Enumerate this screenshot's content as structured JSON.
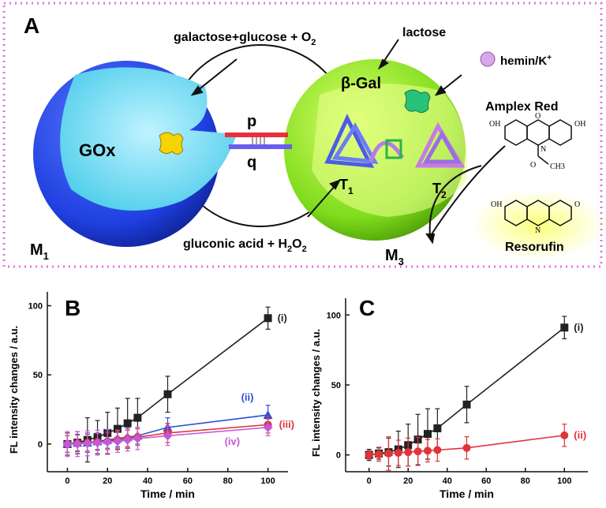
{
  "diagram": {
    "panel": "A",
    "top_reaction": [
      "galactose+glucose + O",
      "2"
    ],
    "bottom_reaction": [
      "gluconic acid + H",
      "2",
      "O",
      "2"
    ],
    "enzyme_left": "GOx",
    "enzyme_right": "β-Gal",
    "substrate": "lactose",
    "cofactor": [
      "hemin/K",
      "+"
    ],
    "strand_p": "p",
    "strand_q": "q",
    "capsule_left": [
      "M",
      "1"
    ],
    "capsule_right": [
      "M",
      "3"
    ],
    "tile_1": [
      "T",
      "1"
    ],
    "tile_2": [
      "T",
      "2"
    ],
    "reagent": "Amplex Red",
    "product": "Resorufin",
    "amplex_atoms": [
      "OH",
      "O",
      "OH",
      "N",
      "O",
      "CH3"
    ],
    "resorufin_atoms": [
      "OH",
      "N",
      "O"
    ]
  },
  "chart_data": [
    {
      "type": "line",
      "panel": "B",
      "x": [
        0,
        5,
        10,
        15,
        20,
        25,
        30,
        35,
        50,
        100
      ],
      "xlim": [
        -10,
        110
      ],
      "xticks": [
        0,
        20,
        40,
        60,
        80,
        100
      ],
      "ylim": [
        -20,
        110
      ],
      "yticks": [
        0,
        50,
        100
      ],
      "x_label": "Time / min",
      "y_label": "FL intensity changes / a.u.",
      "series": [
        {
          "name": "(i)",
          "color": "#222222",
          "marker": "square",
          "values": [
            0,
            1,
            3,
            5,
            8,
            11,
            15,
            19,
            36,
            91
          ],
          "errors": [
            8,
            8,
            16,
            12,
            15,
            15,
            18,
            14,
            13,
            8
          ]
        },
        {
          "name": "(ii)",
          "color": "#2a4fd6",
          "marker": "triangle",
          "values": [
            0,
            1,
            1,
            2,
            3,
            4,
            5,
            6,
            12,
            21
          ],
          "errors": [
            6,
            6,
            7,
            6,
            6,
            6,
            7,
            6,
            7,
            7
          ]
        },
        {
          "name": "(iii)",
          "color": "#e0333a",
          "marker": "circle",
          "values": [
            0,
            0.5,
            1,
            1.5,
            2,
            3,
            4,
            5,
            8,
            14
          ],
          "errors": [
            6,
            6,
            6,
            6,
            6,
            6,
            6,
            6,
            7,
            6
          ]
        },
        {
          "name": "(iv)",
          "color": "#c25ad8",
          "marker": "diamond",
          "values": [
            0,
            0,
            0.5,
            1,
            1.5,
            2,
            3,
            4,
            6,
            12
          ],
          "errors": [
            9,
            9,
            9,
            9,
            9,
            8,
            8,
            8,
            7,
            6
          ]
        }
      ]
    },
    {
      "type": "line",
      "panel": "C",
      "x": [
        0,
        5,
        10,
        15,
        20,
        25,
        30,
        35,
        50,
        100
      ],
      "xlim": [
        -12,
        112
      ],
      "xticks": [
        0,
        20,
        40,
        60,
        80,
        100
      ],
      "ylim": [
        -12,
        112
      ],
      "yticks": [
        0,
        50,
        100
      ],
      "x_label": "Time / min",
      "y_label": "FL intensity changes / a.u.",
      "series": [
        {
          "name": "(i)",
          "color": "#222222",
          "marker": "square",
          "values": [
            0,
            1,
            2,
            4,
            7,
            11,
            15,
            19,
            36,
            91
          ],
          "errors": [
            4,
            4,
            10,
            13,
            15,
            18,
            18,
            14,
            13,
            8
          ]
        },
        {
          "name": "(ii)",
          "color": "#e0333a",
          "marker": "circle",
          "values": [
            0,
            0.5,
            1,
            1.5,
            2,
            2.5,
            3,
            3.5,
            5,
            14
          ],
          "errors": [
            3,
            5,
            12,
            9,
            10,
            10,
            8,
            8,
            8,
            8
          ]
        }
      ]
    }
  ]
}
